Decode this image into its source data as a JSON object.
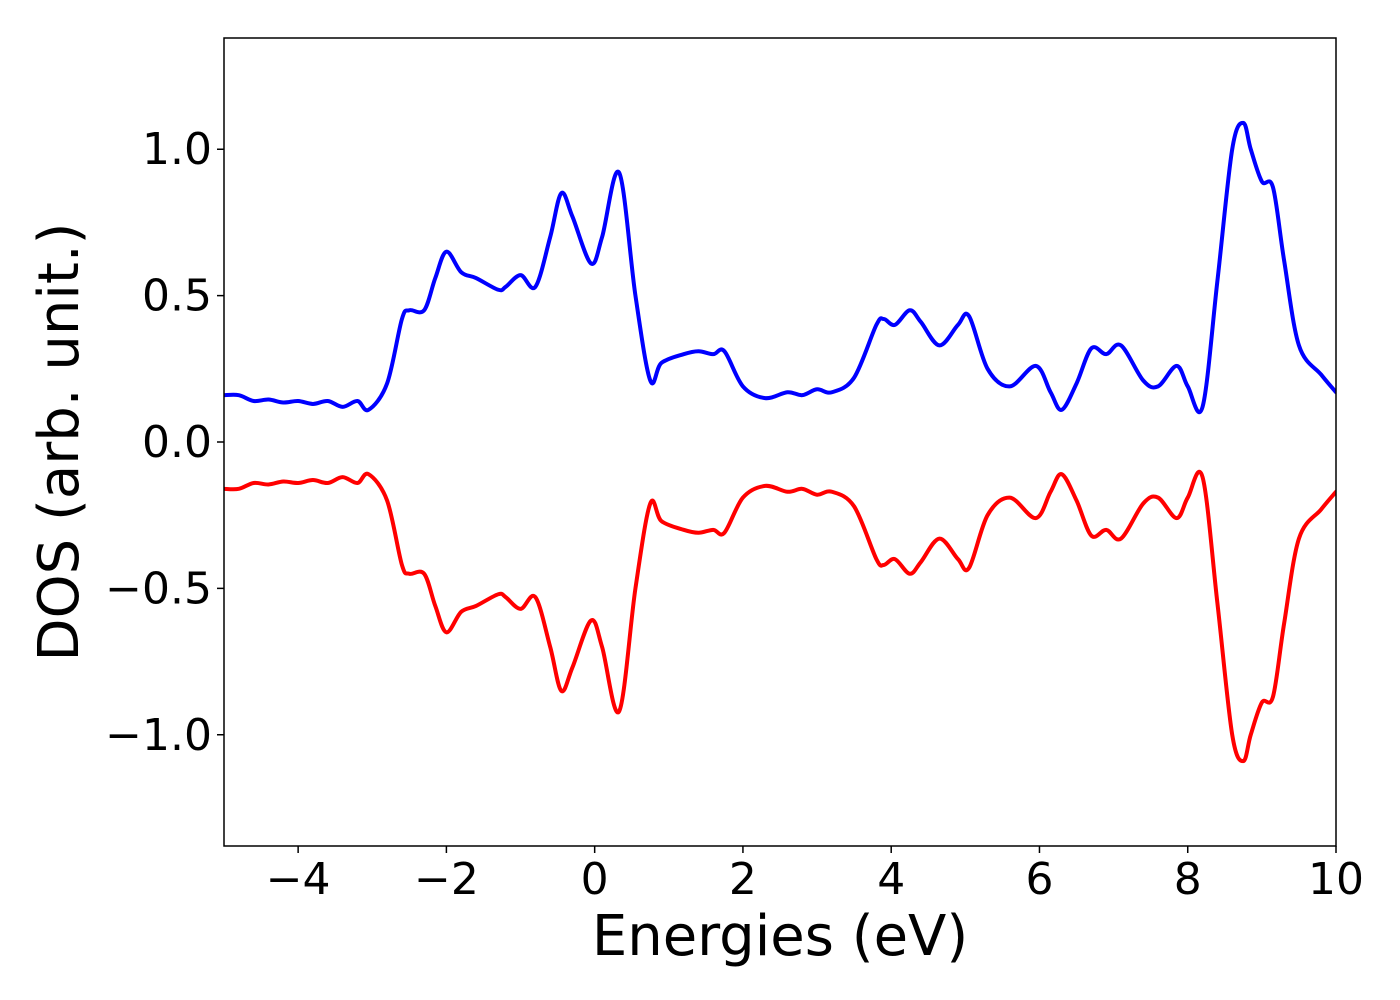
{
  "chart_data": {
    "type": "line",
    "title": "",
    "xlabel": "Energies (eV)",
    "ylabel": "DOS (arb. unit.)",
    "xlim": [
      -5,
      10
    ],
    "ylim": [
      -1.38,
      1.38
    ],
    "grid": false,
    "legend": "none",
    "x_ticks": [
      {
        "value": -4,
        "label": "−4"
      },
      {
        "value": -2,
        "label": "−2"
      },
      {
        "value": 0,
        "label": "0"
      },
      {
        "value": 2,
        "label": "2"
      },
      {
        "value": 4,
        "label": "4"
      },
      {
        "value": 6,
        "label": "6"
      },
      {
        "value": 8,
        "label": "8"
      },
      {
        "value": 10,
        "label": "10"
      }
    ],
    "y_ticks": [
      {
        "value": 1.0,
        "label": "1.0"
      },
      {
        "value": 0.5,
        "label": "0.5"
      },
      {
        "value": 0.0,
        "label": "0.0"
      },
      {
        "value": -0.5,
        "label": "−0.5"
      },
      {
        "value": -1.0,
        "label": "−1.0"
      }
    ],
    "series": [
      {
        "color": "#0000ff",
        "x": [
          -5,
          -4.8,
          -4.6,
          -4.4,
          -4.2,
          -4.0,
          -3.8,
          -3.6,
          -3.4,
          -3.2,
          -3.05,
          -2.8,
          -2.6,
          -2.5,
          -2.3,
          -2.15,
          -2.0,
          -1.8,
          -1.6,
          -1.3,
          -1.2,
          -1.0,
          -0.8,
          -0.6,
          -0.45,
          -0.3,
          -0.05,
          0.1,
          0.33,
          0.55,
          0.75,
          0.9,
          1.2,
          1.4,
          1.6,
          1.75,
          2.0,
          2.3,
          2.6,
          2.8,
          3.0,
          3.2,
          3.5,
          3.8,
          3.9,
          4.05,
          4.25,
          4.4,
          4.65,
          4.9,
          5.05,
          5.3,
          5.6,
          5.95,
          6.15,
          6.3,
          6.5,
          6.7,
          6.9,
          7.1,
          7.4,
          7.6,
          7.85,
          8.0,
          8.2,
          8.4,
          8.6,
          8.75,
          8.85,
          9.0,
          9.15,
          9.3,
          9.5,
          9.8,
          10.0
        ],
        "values": [
          0.16,
          0.16,
          0.14,
          0.145,
          0.135,
          0.14,
          0.13,
          0.14,
          0.12,
          0.14,
          0.11,
          0.2,
          0.42,
          0.45,
          0.45,
          0.56,
          0.65,
          0.58,
          0.56,
          0.52,
          0.53,
          0.57,
          0.53,
          0.7,
          0.85,
          0.77,
          0.61,
          0.7,
          0.92,
          0.5,
          0.21,
          0.27,
          0.3,
          0.31,
          0.3,
          0.31,
          0.19,
          0.15,
          0.17,
          0.16,
          0.18,
          0.17,
          0.22,
          0.4,
          0.42,
          0.4,
          0.45,
          0.41,
          0.33,
          0.4,
          0.43,
          0.25,
          0.19,
          0.26,
          0.17,
          0.11,
          0.2,
          0.32,
          0.3,
          0.33,
          0.21,
          0.19,
          0.26,
          0.19,
          0.12,
          0.55,
          1.0,
          1.09,
          1.0,
          0.89,
          0.87,
          0.62,
          0.33,
          0.23,
          0.17
        ]
      },
      {
        "color": "#ff0000",
        "x": [
          -5,
          -4.8,
          -4.6,
          -4.4,
          -4.2,
          -4.0,
          -3.8,
          -3.6,
          -3.4,
          -3.2,
          -3.05,
          -2.8,
          -2.6,
          -2.5,
          -2.3,
          -2.15,
          -2.0,
          -1.8,
          -1.6,
          -1.3,
          -1.2,
          -1.0,
          -0.8,
          -0.6,
          -0.45,
          -0.3,
          -0.05,
          0.1,
          0.33,
          0.55,
          0.75,
          0.9,
          1.2,
          1.4,
          1.6,
          1.75,
          2.0,
          2.3,
          2.6,
          2.8,
          3.0,
          3.2,
          3.5,
          3.8,
          3.9,
          4.05,
          4.25,
          4.4,
          4.65,
          4.9,
          5.05,
          5.3,
          5.6,
          5.95,
          6.15,
          6.3,
          6.5,
          6.7,
          6.9,
          7.1,
          7.4,
          7.6,
          7.85,
          8.0,
          8.2,
          8.4,
          8.6,
          8.75,
          8.85,
          9.0,
          9.15,
          9.3,
          9.5,
          9.8,
          10.0
        ],
        "values": [
          -0.16,
          -0.16,
          -0.14,
          -0.145,
          -0.135,
          -0.14,
          -0.13,
          -0.14,
          -0.12,
          -0.14,
          -0.11,
          -0.2,
          -0.42,
          -0.45,
          -0.45,
          -0.56,
          -0.65,
          -0.58,
          -0.56,
          -0.52,
          -0.53,
          -0.57,
          -0.53,
          -0.7,
          -0.85,
          -0.77,
          -0.61,
          -0.7,
          -0.92,
          -0.5,
          -0.21,
          -0.27,
          -0.3,
          -0.31,
          -0.3,
          -0.31,
          -0.19,
          -0.15,
          -0.17,
          -0.16,
          -0.18,
          -0.17,
          -0.22,
          -0.4,
          -0.42,
          -0.4,
          -0.45,
          -0.41,
          -0.33,
          -0.4,
          -0.43,
          -0.25,
          -0.19,
          -0.26,
          -0.17,
          -0.11,
          -0.2,
          -0.32,
          -0.3,
          -0.33,
          -0.21,
          -0.19,
          -0.26,
          -0.19,
          -0.12,
          -0.55,
          -1.0,
          -1.09,
          -1.0,
          -0.89,
          -0.87,
          -0.62,
          -0.33,
          -0.23,
          -0.17
        ]
      }
    ]
  }
}
